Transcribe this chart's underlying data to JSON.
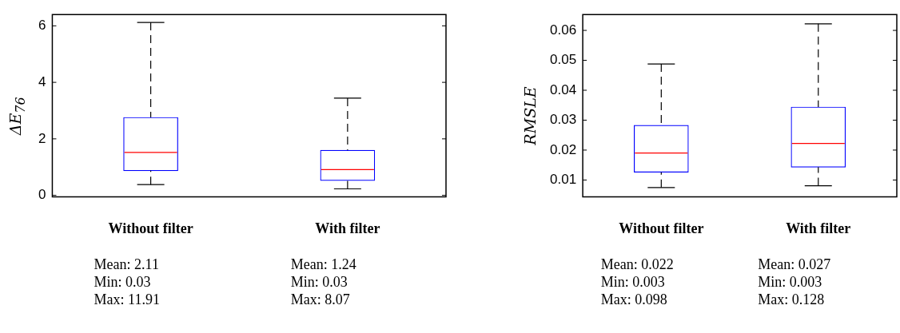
{
  "chart_data": [
    {
      "type": "box",
      "ylabel": "ΔE$_{76}$",
      "categories": [
        "Without filter",
        "With filter"
      ],
      "ylim": [
        -0.05,
        6.4
      ],
      "yticks": [
        0,
        2,
        4,
        6
      ],
      "grid": false,
      "legend": false,
      "boxes": [
        {
          "low": 0.38,
          "q1": 0.87,
          "median": 1.52,
          "q3": 2.76,
          "high": 6.12
        },
        {
          "low": 0.23,
          "q1": 0.52,
          "median": 0.91,
          "q3": 1.6,
          "high": 3.44
        }
      ],
      "annotations": [
        "Mean: 2.11\nMin: 0.03\nMax: 11.91",
        "Mean: 1.24\nMin: 0.03\nMax: 8.07"
      ]
    },
    {
      "type": "box",
      "ylabel": "RMSLE",
      "categories": [
        "Without filter",
        "With filter"
      ],
      "ylim": [
        0.0044,
        0.0653
      ],
      "yticks": [
        0.01,
        0.02,
        0.03,
        0.04,
        0.05,
        0.06
      ],
      "grid": false,
      "legend": false,
      "boxes": [
        {
          "low": 0.0075,
          "q1": 0.0126,
          "median": 0.019,
          "q3": 0.0283,
          "high": 0.0488
        },
        {
          "low": 0.0081,
          "q1": 0.0143,
          "median": 0.0222,
          "q3": 0.0344,
          "high": 0.0622
        }
      ],
      "annotations": [
        "Mean: 0.022\nMin: 0.003\nMax: 0.098",
        "Mean: 0.027\nMin: 0.003\nMax: 0.128"
      ]
    }
  ]
}
